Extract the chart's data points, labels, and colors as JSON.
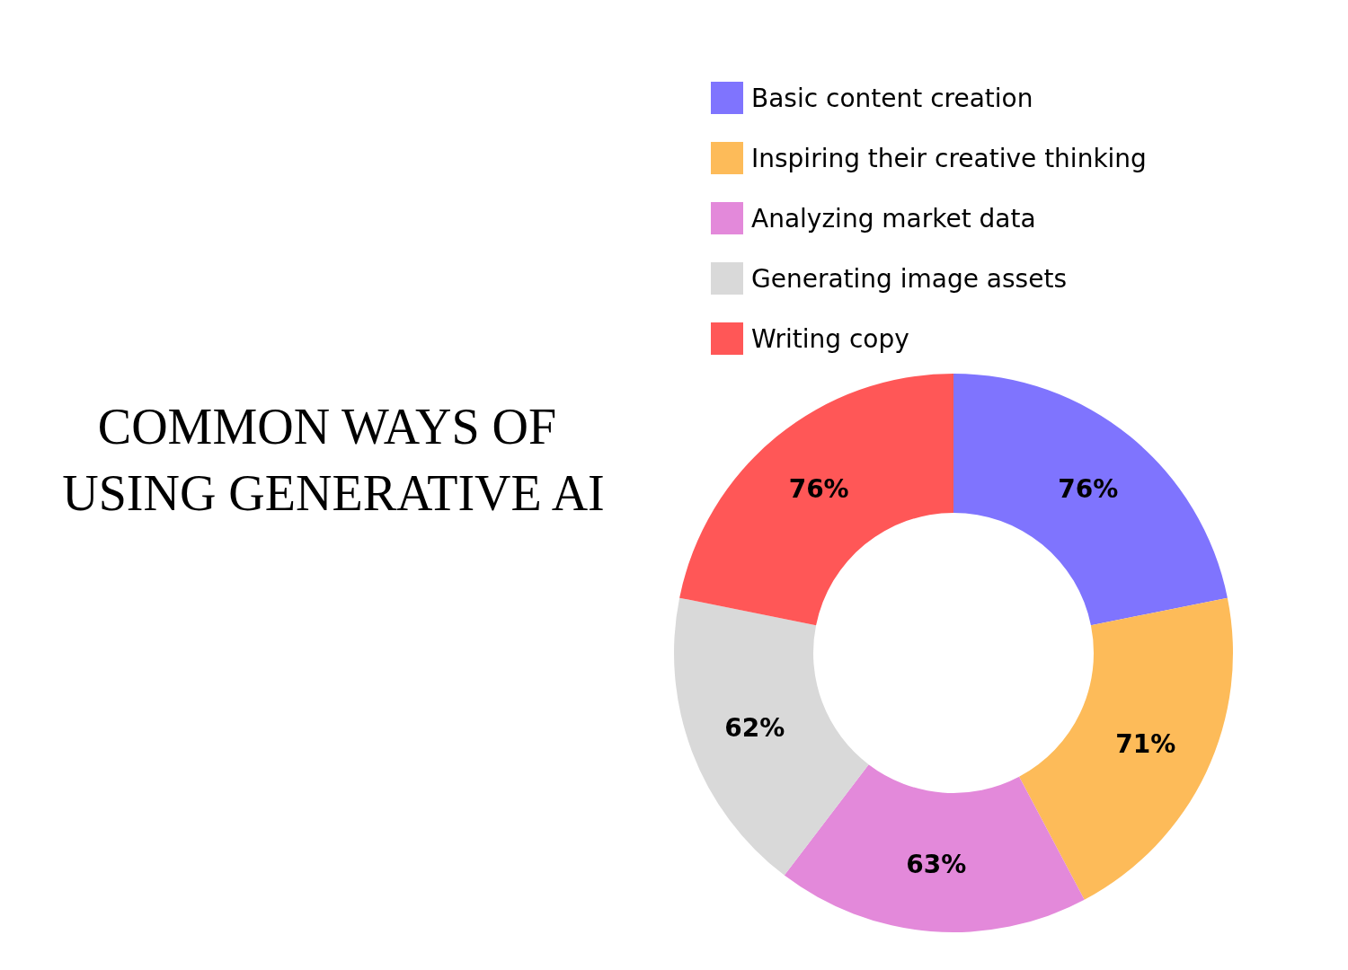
{
  "chart_data": {
    "type": "donut",
    "title": "COMMON WAYS OF USING GENERATIVE AI",
    "categories": [
      "Basic content creation",
      "Inspiring their creative thinking",
      "Analyzing market data",
      "Generating image assets",
      "Writing copy"
    ],
    "values": [
      76,
      71,
      63,
      62,
      76
    ],
    "colors": [
      "#7f74fe",
      "#fdbb59",
      "#e389da",
      "#d9d9d9",
      "#ff5757"
    ],
    "value_labels": [
      "76%",
      "71%",
      "63%",
      "62%",
      "76%"
    ],
    "legend": "top right"
  }
}
